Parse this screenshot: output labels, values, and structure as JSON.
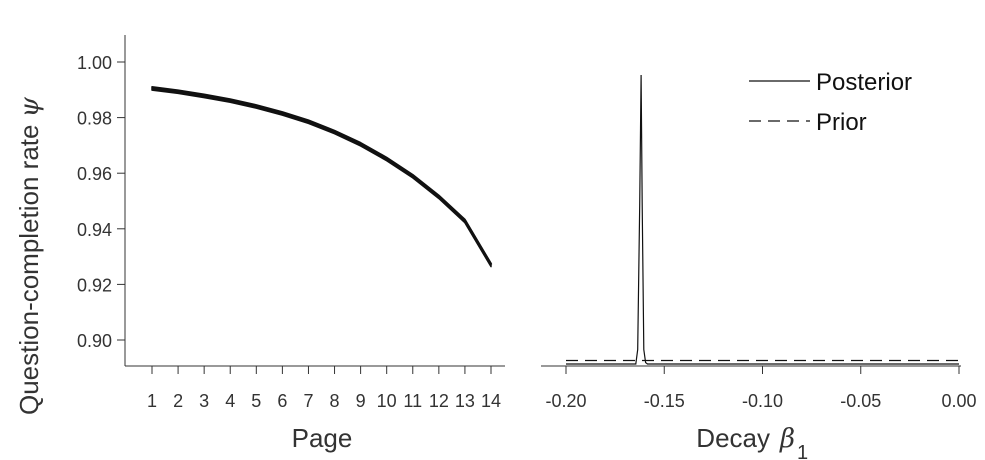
{
  "chart_data": [
    {
      "type": "line",
      "title": "",
      "xlabel": "Page",
      "ylabel": "Question-completion rate",
      "ylabel_symbol": "ψ",
      "x": [
        1,
        2,
        3,
        4,
        5,
        6,
        7,
        8,
        9,
        10,
        11,
        12,
        13,
        14
      ],
      "x_tick_labels": [
        "1",
        "2",
        "3",
        "4",
        "5",
        "6",
        "7",
        "8",
        "9",
        "10",
        "11",
        "12",
        "13",
        "14"
      ],
      "series": [
        {
          "values": [
            0.9905,
            0.9893,
            0.9878,
            0.9861,
            0.984,
            0.9815,
            0.9785,
            0.9748,
            0.9704,
            0.9651,
            0.9589,
            0.9515,
            0.9428,
            0.927
          ],
          "band_width": 0.0012,
          "color": "#111111"
        }
      ],
      "ylim": [
        0.89,
        1.01
      ],
      "y_ticks": [
        0.9,
        0.92,
        0.94,
        0.96,
        0.98,
        1.0
      ],
      "y_tick_labels": [
        "0.90",
        "0.92",
        "0.94",
        "0.96",
        "0.98",
        "1.00"
      ],
      "grid": false
    },
    {
      "type": "line",
      "title": "",
      "xlabel": "Decay",
      "xlabel_symbol": "β",
      "xlabel_subscript": "1",
      "xlim": [
        -0.2,
        0.0
      ],
      "x_ticks": [
        -0.2,
        -0.15,
        -0.1,
        -0.05,
        0.0
      ],
      "x_tick_labels": [
        "-0.20",
        "-0.15",
        "-0.10",
        "-0.05",
        "0.00"
      ],
      "series": [
        {
          "name": "Posterior",
          "style": "solid",
          "x": [
            -0.2,
            -0.1645,
            -0.1635,
            -0.1625,
            -0.1618,
            -0.1612,
            -0.1604,
            -0.1595,
            -0.1585,
            0.0
          ],
          "y": [
            0,
            0,
            0.05,
            0.55,
            1.0,
            0.55,
            0.05,
            0.005,
            0,
            0
          ]
        },
        {
          "name": "Prior",
          "style": "dashed",
          "x": [
            -0.2,
            0.0
          ],
          "y": [
            0.012,
            0.012
          ]
        }
      ],
      "legend_position": "top-right",
      "grid": false
    }
  ]
}
